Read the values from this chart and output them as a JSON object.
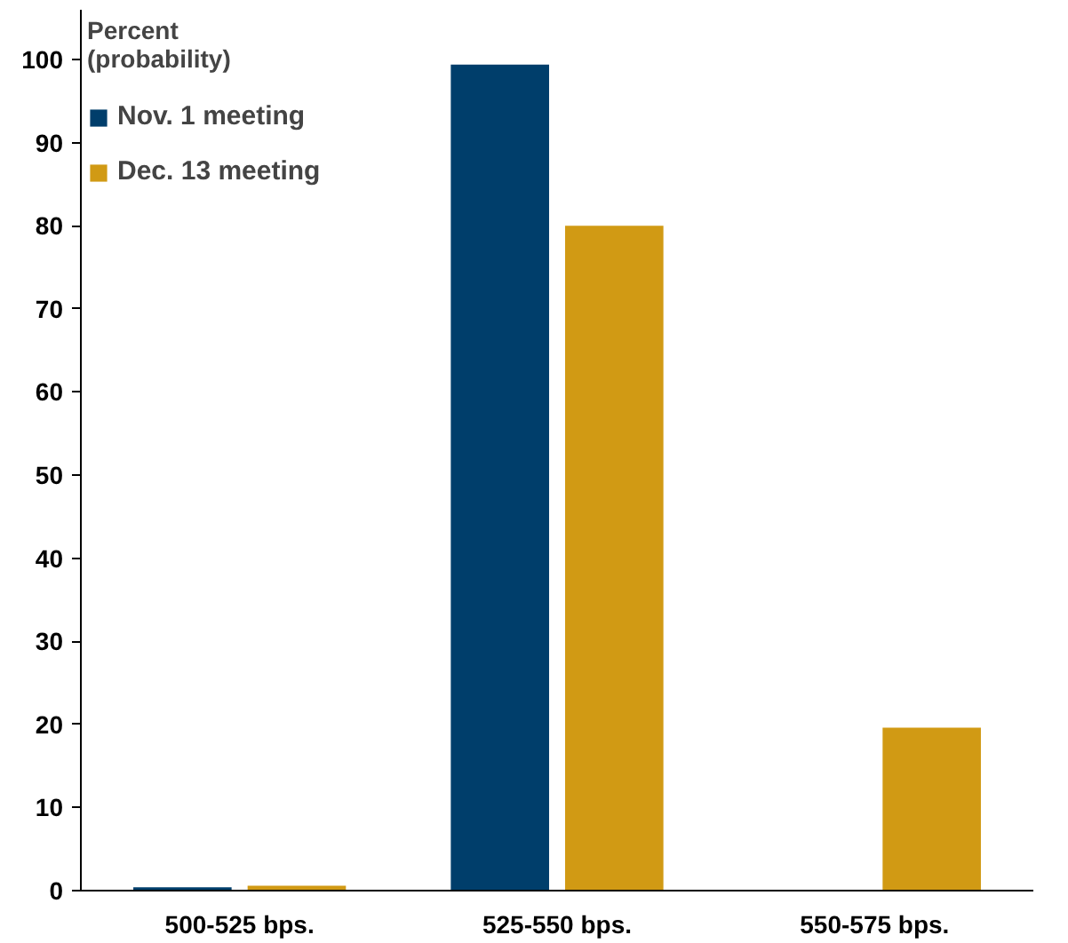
{
  "chart_data": {
    "type": "bar",
    "ylabel": "Percent\n(probability)",
    "categories": [
      "500-525 bps.",
      "525-550 bps.",
      "550-575 bps."
    ],
    "series": [
      {
        "name": "Nov. 1 meeting",
        "color": "#003e6b",
        "values": [
          0.4,
          99.4,
          0
        ]
      },
      {
        "name": "Dec. 13 meeting",
        "color": "#d19a14",
        "values": [
          0.6,
          80,
          19.6
        ]
      }
    ],
    "ylim": [
      0,
      106
    ],
    "yticks": [
      0,
      10,
      20,
      30,
      40,
      50,
      60,
      70,
      80,
      90,
      100
    ],
    "grid": false,
    "legend": "top left"
  }
}
